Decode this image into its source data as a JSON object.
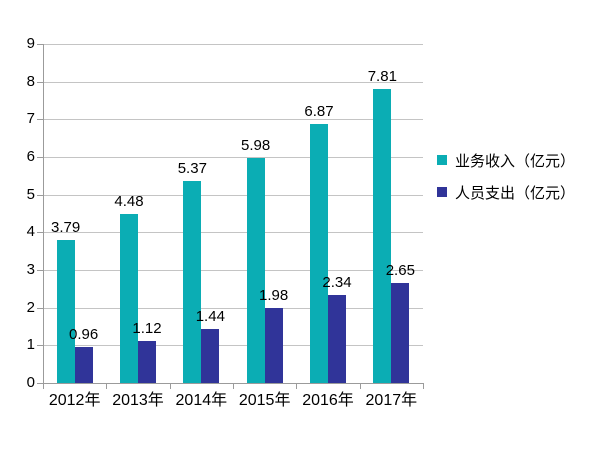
{
  "chart_data": {
    "type": "bar",
    "title": "",
    "categories": [
      "2012年",
      "2013年",
      "2014年",
      "2015年",
      "2016年",
      "2017年"
    ],
    "series": [
      {
        "name": "业务收入（亿元）",
        "color": "#0BADB4",
        "values": [
          3.79,
          4.48,
          5.37,
          5.98,
          6.87,
          7.81
        ]
      },
      {
        "name": "人员支出（亿元）",
        "color": "#303499",
        "values": [
          0.96,
          1.12,
          1.44,
          1.98,
          2.34,
          2.65
        ]
      }
    ],
    "y_axis": {
      "min": 0,
      "max": 9,
      "step": 1,
      "tick_labels": [
        "0",
        "1",
        "2",
        "3",
        "4",
        "5",
        "6",
        "7",
        "8",
        "9"
      ]
    },
    "xlabel": "",
    "ylabel": "",
    "grid": true,
    "legend_position": "right",
    "value_labels": true,
    "colors": {
      "background": "#ffffff",
      "gridline": "#c4c4c4",
      "axis": "#9b9b9b",
      "text": "#000000"
    }
  }
}
